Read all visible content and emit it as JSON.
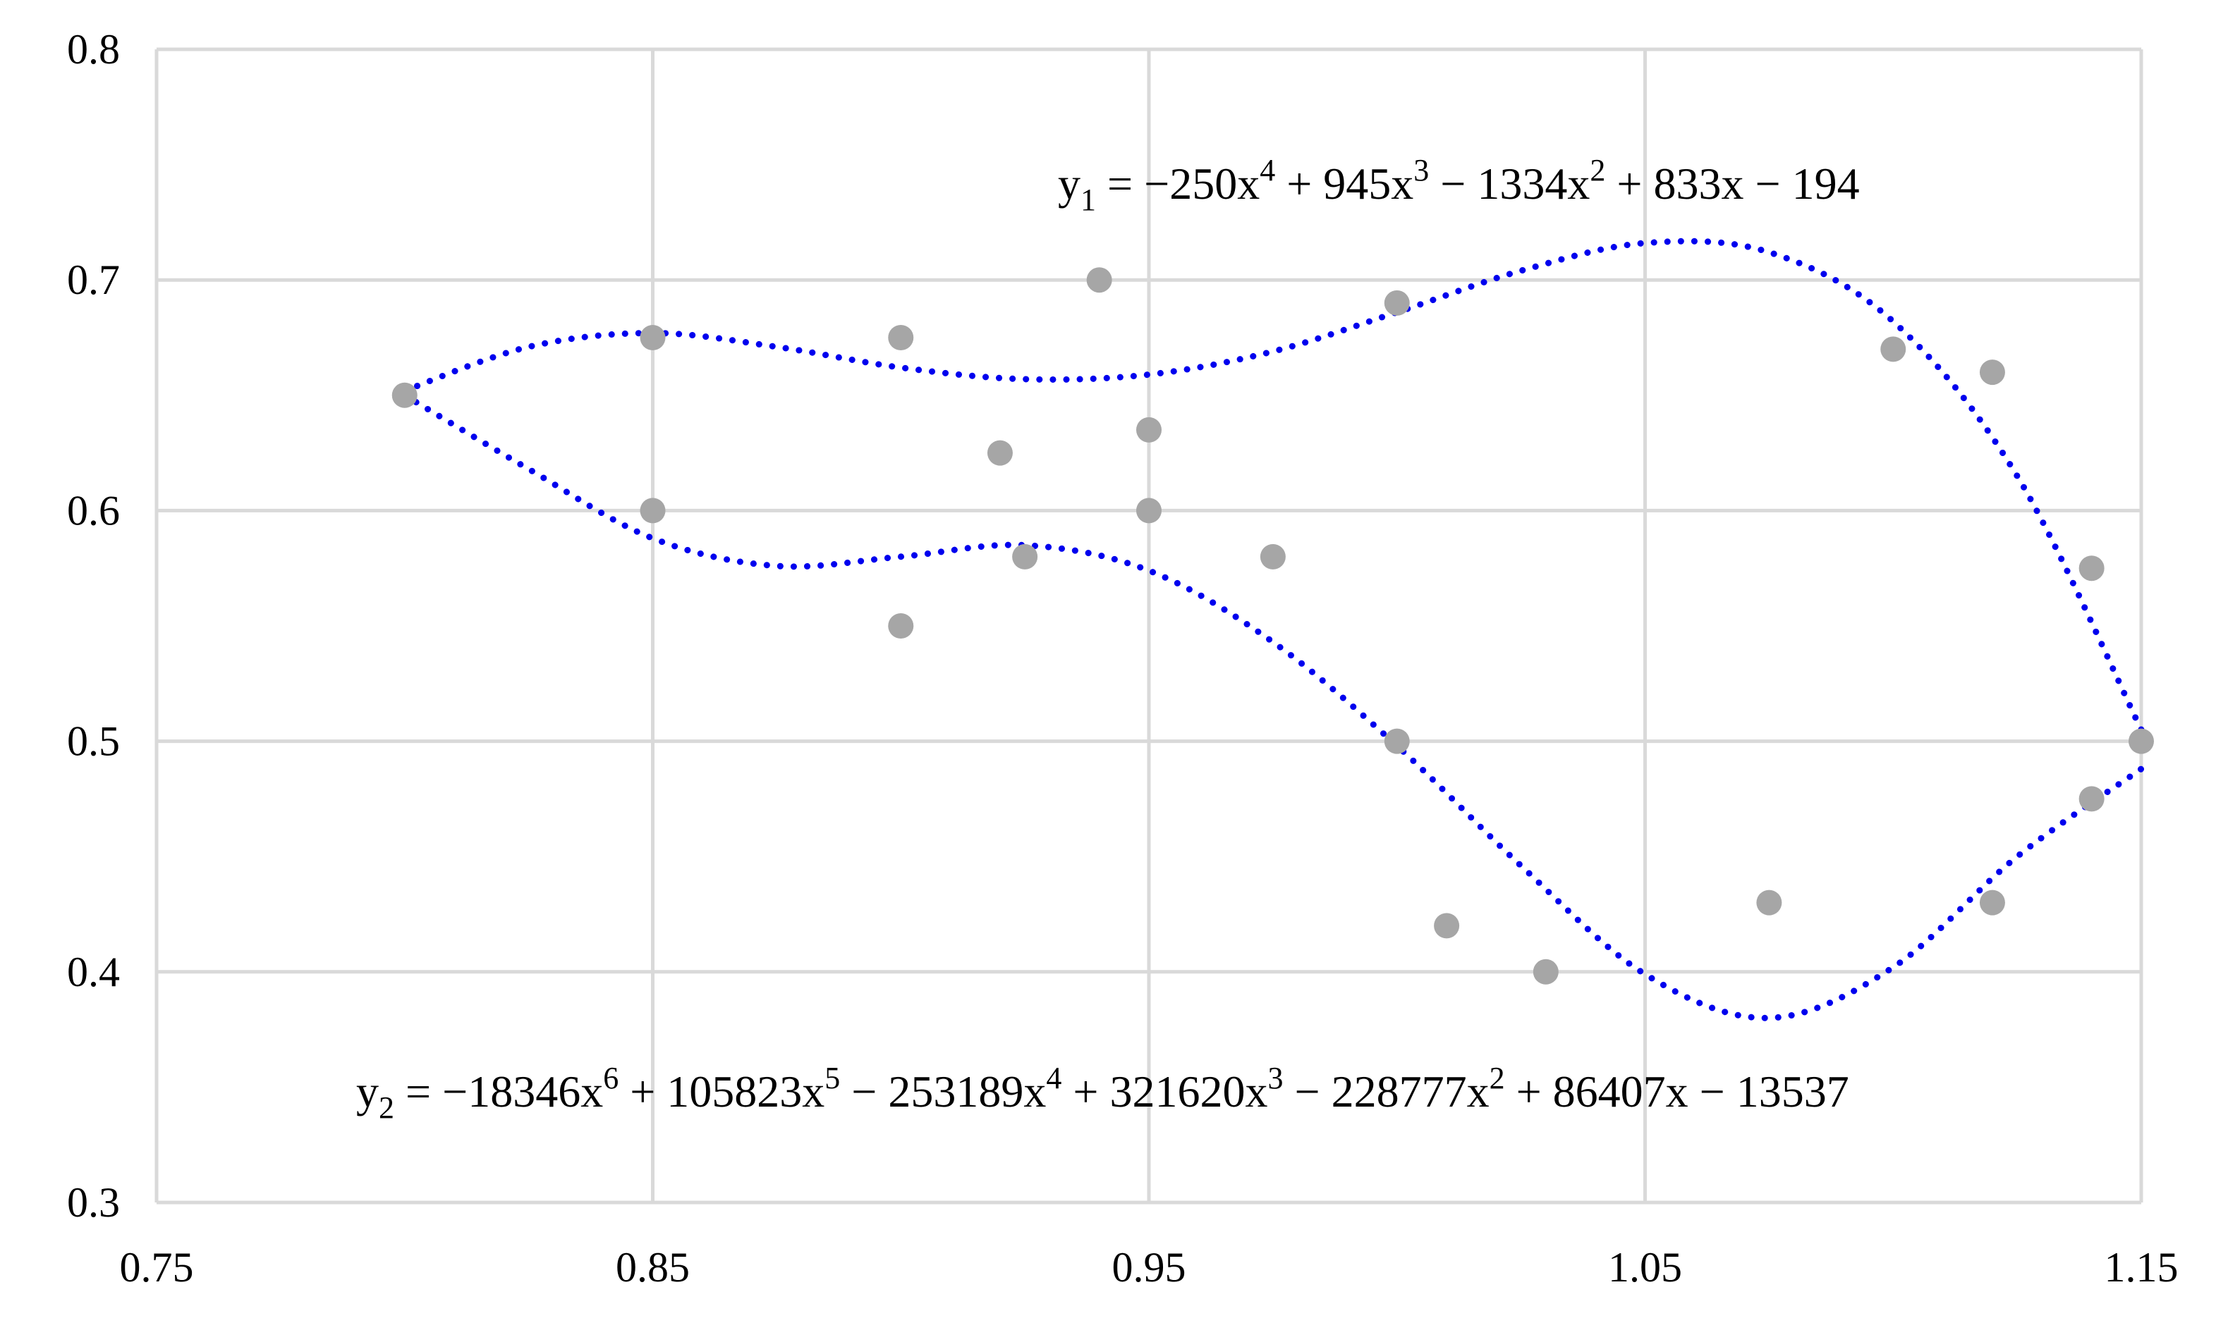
{
  "chart_data": {
    "type": "scatter",
    "title": "",
    "xlabel": "",
    "ylabel": "",
    "xlim": [
      0.75,
      1.15
    ],
    "ylim": [
      0.3,
      0.8
    ],
    "grid": true,
    "x_ticks": [
      "0.75",
      "0.85",
      "0.95",
      "1.05",
      "1.15"
    ],
    "y_ticks": [
      "0.3",
      "0.4",
      "0.5",
      "0.6",
      "0.7",
      "0.8"
    ],
    "colors": {
      "points": "#a6a6a6",
      "trendline": "#0000ee",
      "grid": "#d9d9d9"
    },
    "points": [
      {
        "x": 0.8,
        "y": 0.65
      },
      {
        "x": 0.85,
        "y": 0.675
      },
      {
        "x": 0.85,
        "y": 0.6
      },
      {
        "x": 0.9,
        "y": 0.675
      },
      {
        "x": 0.9,
        "y": 0.55
      },
      {
        "x": 0.92,
        "y": 0.625
      },
      {
        "x": 0.925,
        "y": 0.58
      },
      {
        "x": 0.94,
        "y": 0.7
      },
      {
        "x": 0.95,
        "y": 0.635
      },
      {
        "x": 0.95,
        "y": 0.6
      },
      {
        "x": 0.975,
        "y": 0.58
      },
      {
        "x": 1.0,
        "y": 0.69
      },
      {
        "x": 1.0,
        "y": 0.5
      },
      {
        "x": 1.01,
        "y": 0.42
      },
      {
        "x": 1.03,
        "y": 0.4
      },
      {
        "x": 1.075,
        "y": 0.43
      },
      {
        "x": 1.1,
        "y": 0.67
      },
      {
        "x": 1.12,
        "y": 0.66
      },
      {
        "x": 1.12,
        "y": 0.43
      },
      {
        "x": 1.14,
        "y": 0.575
      },
      {
        "x": 1.14,
        "y": 0.475
      },
      {
        "x": 1.15,
        "y": 0.5
      }
    ],
    "trendlines": [
      {
        "type": "polynomial",
        "order": 4,
        "equation": {
          "y": "y",
          "sub": "1",
          "parts": [
            {
              "t": " = −250x"
            },
            {
              "sup": "4"
            },
            {
              "t": " + 945x"
            },
            {
              "sup": "3"
            },
            {
              "t": " − 1334x"
            },
            {
              "sup": "2"
            },
            {
              "t": " + 833x − 194"
            }
          ]
        },
        "x": [
          0.8,
          0.825,
          0.85,
          0.875,
          0.9,
          0.925,
          0.95,
          0.975,
          1.0,
          1.025,
          1.05,
          1.075,
          1.1,
          1.125,
          1.15
        ],
        "y": [
          0.652,
          0.671,
          0.677,
          0.671,
          0.662,
          0.657,
          0.659,
          0.669,
          0.686,
          0.704,
          0.716,
          0.712,
          0.682,
          0.615,
          0.505
        ]
      },
      {
        "type": "polynomial",
        "order": 6,
        "equation": {
          "y": "y",
          "sub": "2",
          "parts": [
            {
              "t": " = −18346x"
            },
            {
              "sup": "6"
            },
            {
              "t": " + 105823x"
            },
            {
              "sup": "5"
            },
            {
              "t": " − 253189x"
            },
            {
              "sup": "4"
            },
            {
              "t": " + 321620x"
            },
            {
              "sup": "3"
            },
            {
              "t": " − 228777x"
            },
            {
              "sup": "2"
            },
            {
              "t": " + 86407x − 13537"
            }
          ]
        },
        "x": [
          0.8,
          0.825,
          0.85,
          0.875,
          0.9,
          0.925,
          0.95,
          0.975,
          1.0,
          1.025,
          1.05,
          1.075,
          1.1,
          1.125,
          1.15
        ],
        "y": [
          0.65,
          0.618,
          0.588,
          0.576,
          0.58,
          0.585,
          0.574,
          0.543,
          0.498,
          0.446,
          0.399,
          0.38,
          0.402,
          0.45,
          0.488
        ]
      }
    ]
  }
}
